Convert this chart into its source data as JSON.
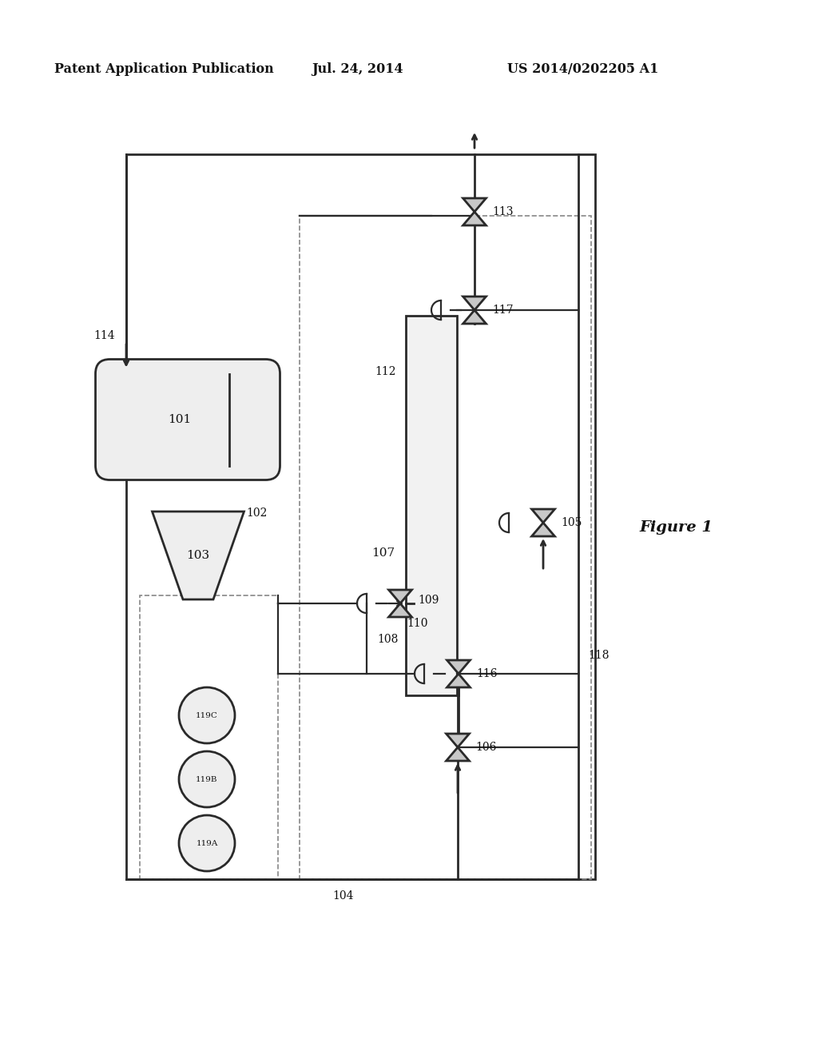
{
  "bg_color": "#ffffff",
  "line_color": "#2a2a2a",
  "header_left": "Patent Application Publication",
  "header_mid": "Jul. 24, 2014",
  "header_right": "US 2014/0202205 A1",
  "figure_label": "Figure 1",
  "lw": 1.6,
  "lw2": 2.0
}
